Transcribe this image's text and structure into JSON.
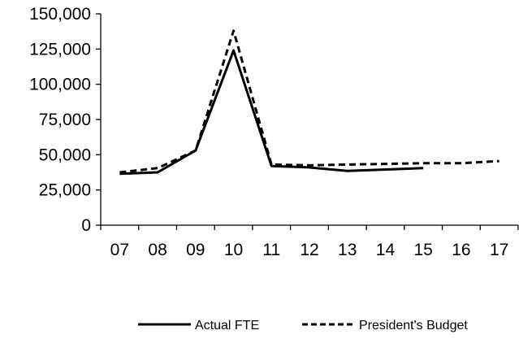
{
  "chart_data": {
    "type": "line",
    "categories": [
      "07",
      "08",
      "09",
      "10",
      "11",
      "12",
      "13",
      "14",
      "15",
      "16",
      "17"
    ],
    "y_ticks": [
      "0",
      "25,000",
      "50,000",
      "75,000",
      "100,000",
      "125,000",
      "150,000"
    ],
    "ylim": [
      0,
      150000
    ],
    "grid": false,
    "legend_position": "bottom",
    "series": [
      {
        "name": "Actual FTE",
        "style": "solid",
        "color": "#000000",
        "points": [
          {
            "x": 0,
            "y": 36500
          },
          {
            "x": 1,
            "y": 37500
          },
          {
            "x": 2,
            "y": 53000
          },
          {
            "x": 3,
            "y": 124000
          },
          {
            "x": 4,
            "y": 42000
          },
          {
            "x": 5,
            "y": 41000
          },
          {
            "x": 6,
            "y": 38500
          },
          {
            "x": 8,
            "y": 40500
          }
        ]
      },
      {
        "name": "President's Budget",
        "style": "dashed",
        "color": "#000000",
        "points": [
          {
            "x": 0,
            "y": 37500
          },
          {
            "x": 1,
            "y": 40500
          },
          {
            "x": 2,
            "y": 53000
          },
          {
            "x": 3,
            "y": 138000
          },
          {
            "x": 4,
            "y": 43000
          },
          {
            "x": 5,
            "y": 42500
          },
          {
            "x": 6,
            "y": 43000
          },
          {
            "x": 8,
            "y": 44000
          },
          {
            "x": 9,
            "y": 44000
          },
          {
            "x": 10,
            "y": 45500
          }
        ]
      }
    ]
  }
}
